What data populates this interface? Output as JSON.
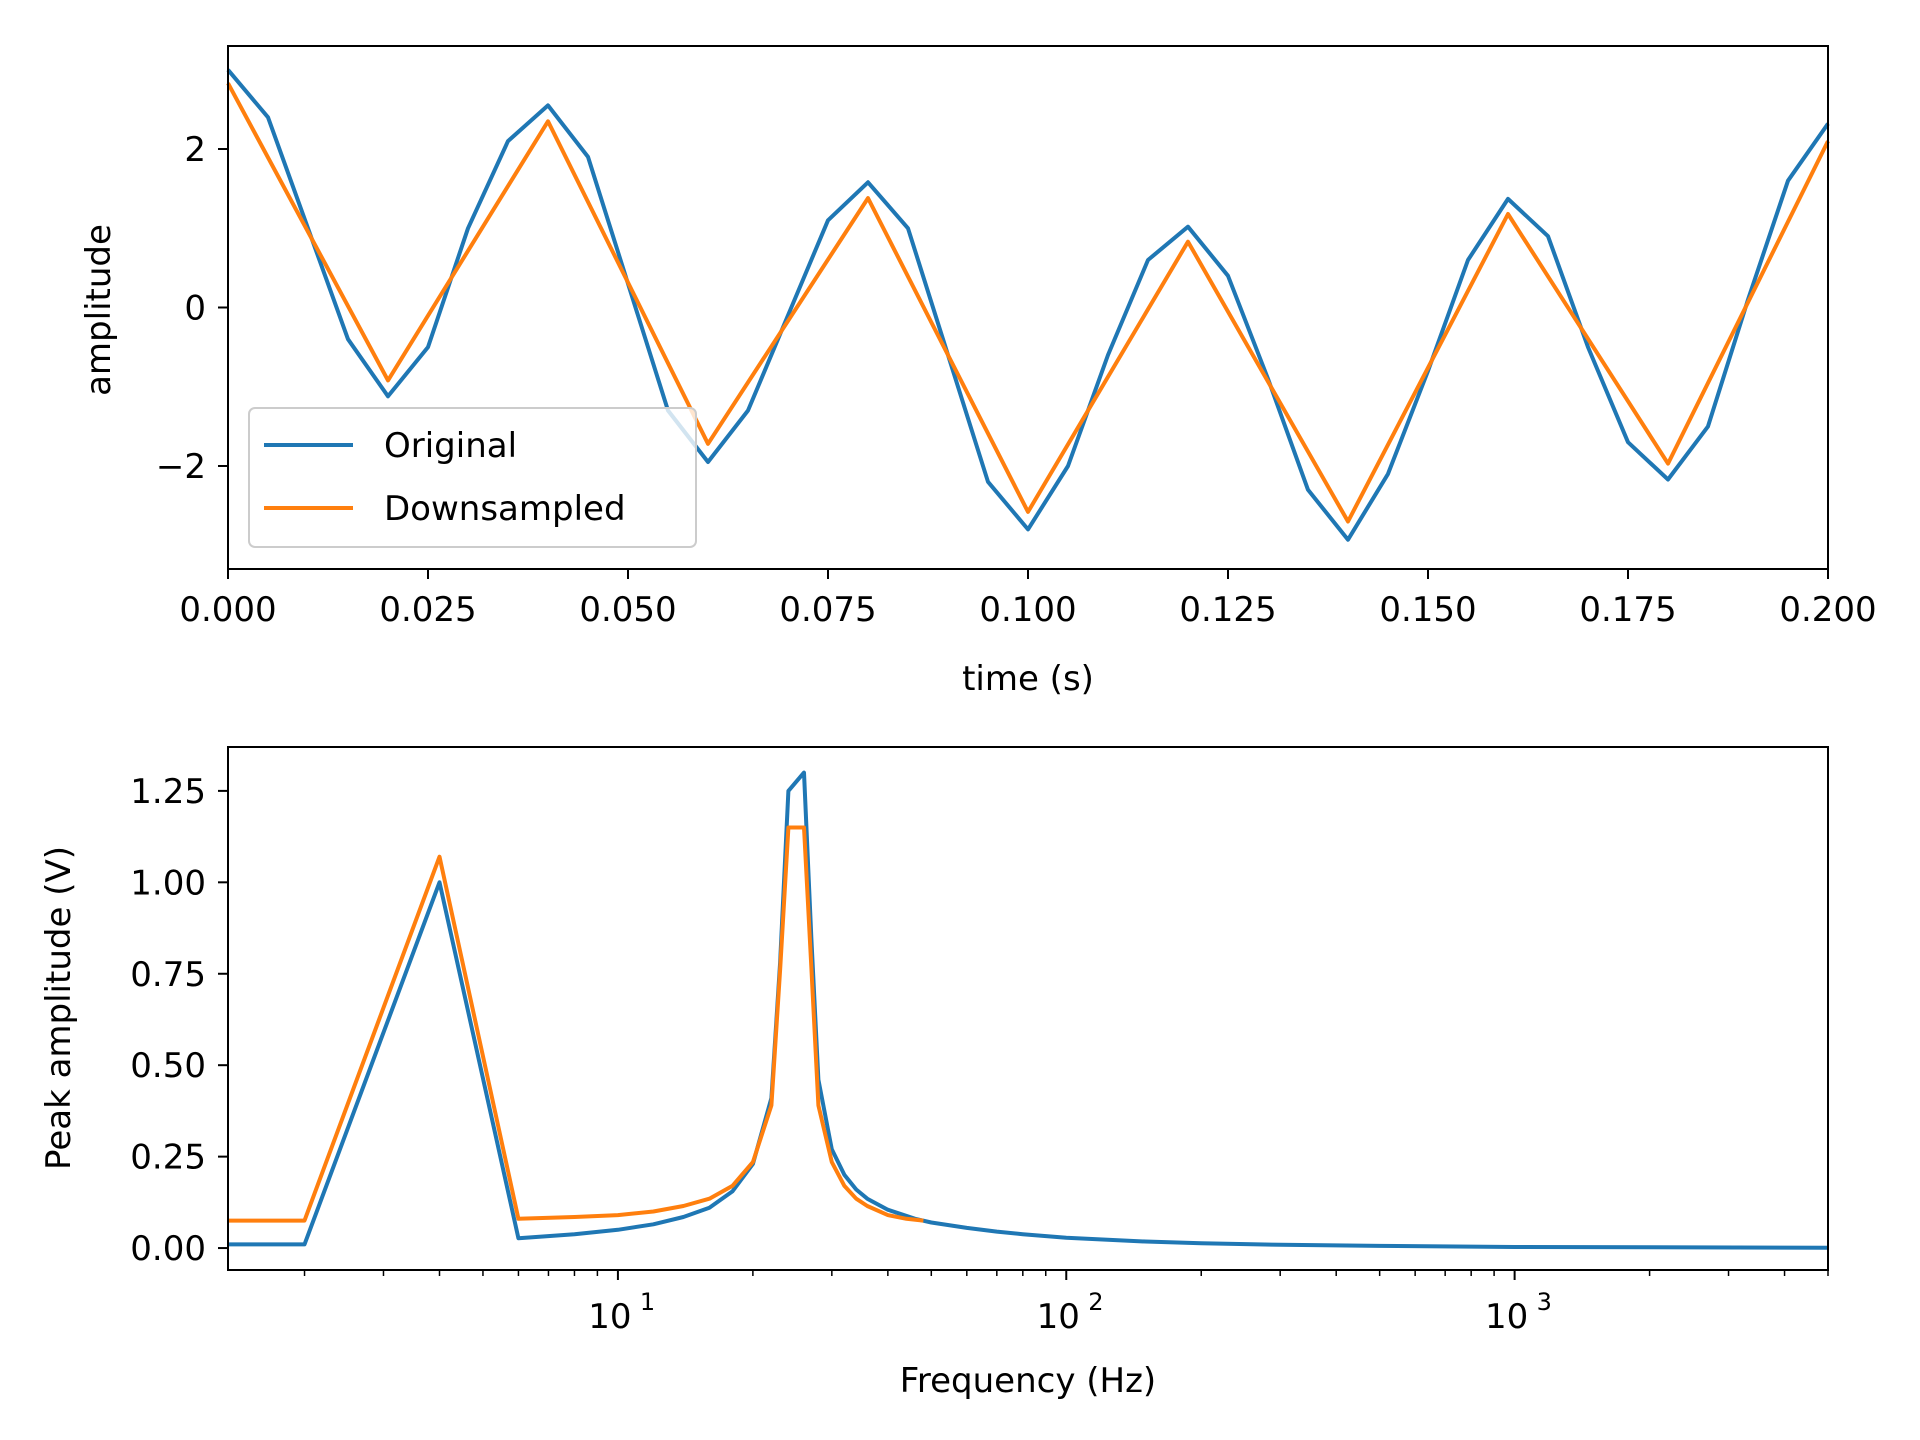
{
  "colors": {
    "original": "#1f77b4",
    "downsampled": "#ff7f0e"
  },
  "chart_data": [
    {
      "type": "line",
      "xlabel": "time (s)",
      "ylabel": "amplitude",
      "xlim": [
        0,
        0.2
      ],
      "ylim": [
        -3.3,
        3.3
      ],
      "xticks": [
        0,
        0.025,
        0.05,
        0.075,
        0.1,
        0.125,
        0.15,
        0.175,
        0.2
      ],
      "xtick_labels": [
        "0.000",
        "0.025",
        "0.050",
        "0.075",
        "0.100",
        "0.125",
        "0.150",
        "0.175",
        "0.200"
      ],
      "yticks": [
        -2,
        0,
        2
      ],
      "ytick_labels": [
        "−2",
        "0",
        "2"
      ],
      "legend": {
        "position": "lower-left",
        "entries": [
          "Original",
          "Downsampled"
        ]
      },
      "series": [
        {
          "name": "Original",
          "x": [
            0.0,
            0.005,
            0.01,
            0.015,
            0.02,
            0.025,
            0.03,
            0.035,
            0.04,
            0.045,
            0.05,
            0.055,
            0.06,
            0.065,
            0.07,
            0.075,
            0.08,
            0.085,
            0.09,
            0.095,
            0.1,
            0.105,
            0.11,
            0.115,
            0.12,
            0.125,
            0.13,
            0.135,
            0.14,
            0.145,
            0.15,
            0.155,
            0.16,
            0.165,
            0.17,
            0.175,
            0.18,
            0.185,
            0.19,
            0.195,
            0.2
          ],
          "y": [
            3.0,
            2.4,
            1.0,
            -0.4,
            -1.12,
            -0.5,
            1.0,
            2.1,
            2.55,
            1.9,
            0.3,
            -1.3,
            -1.95,
            -1.3,
            -0.1,
            1.1,
            1.58,
            1.0,
            -0.6,
            -2.2,
            -2.8,
            -2.0,
            -0.6,
            0.6,
            1.02,
            0.4,
            -0.9,
            -2.3,
            -2.93,
            -2.1,
            -0.8,
            0.6,
            1.37,
            0.9,
            -0.5,
            -1.7,
            -2.17,
            -1.5,
            0.1,
            1.6,
            2.32
          ]
        },
        {
          "name": "Downsampled",
          "x": [
            0.0,
            0.02,
            0.04,
            0.06,
            0.08,
            0.1,
            0.12,
            0.14,
            0.16,
            0.18,
            0.2
          ],
          "y": [
            2.83,
            -0.92,
            2.35,
            -1.72,
            1.38,
            -2.58,
            0.83,
            -2.7,
            1.18,
            -1.97,
            2.1
          ]
        }
      ]
    },
    {
      "type": "line",
      "xlabel": "Frequency (Hz)",
      "ylabel": "Peak amplitude (V)",
      "xscale": "log",
      "xlim": [
        1.35,
        5000
      ],
      "ylim": [
        -0.06,
        1.37
      ],
      "xticks": [
        10,
        100,
        1000
      ],
      "xtick_labels": [
        "10",
        "10",
        "10"
      ],
      "xtick_exponents": [
        "1",
        "2",
        "3"
      ],
      "yticks": [
        0,
        0.25,
        0.5,
        0.75,
        1.0,
        1.25
      ],
      "ytick_labels": [
        "0.00",
        "0.25",
        "0.50",
        "0.75",
        "1.00",
        "1.25"
      ],
      "series": [
        {
          "name": "Original",
          "x": [
            1.35,
            2,
            4,
            6,
            8,
            10,
            12,
            14,
            16,
            18,
            20,
            22,
            23,
            24,
            26,
            27,
            28,
            30,
            32,
            34,
            36,
            40,
            46,
            50,
            60,
            70,
            80,
            100,
            150,
            200,
            300,
            500,
            1000,
            2000,
            5000
          ],
          "y": [
            0.01,
            0.01,
            1.0,
            0.027,
            0.038,
            0.05,
            0.065,
            0.085,
            0.11,
            0.155,
            0.23,
            0.41,
            0.78,
            1.25,
            1.3,
            0.85,
            0.46,
            0.27,
            0.2,
            0.16,
            0.135,
            0.105,
            0.08,
            0.07,
            0.055,
            0.045,
            0.038,
            0.028,
            0.018,
            0.013,
            0.009,
            0.006,
            0.003,
            0.002,
            0.001
          ]
        },
        {
          "name": "Downsampled",
          "x": [
            1.35,
            2,
            4,
            6,
            8,
            10,
            12,
            14,
            16,
            18,
            20,
            22,
            23,
            24,
            26,
            27,
            28,
            30,
            32,
            34,
            36,
            40,
            44,
            48
          ],
          "y": [
            0.075,
            0.075,
            1.07,
            0.08,
            0.085,
            0.09,
            0.1,
            0.115,
            0.135,
            0.17,
            0.235,
            0.39,
            0.76,
            1.15,
            1.15,
            0.77,
            0.39,
            0.235,
            0.17,
            0.135,
            0.115,
            0.09,
            0.08,
            0.075
          ]
        }
      ]
    }
  ]
}
